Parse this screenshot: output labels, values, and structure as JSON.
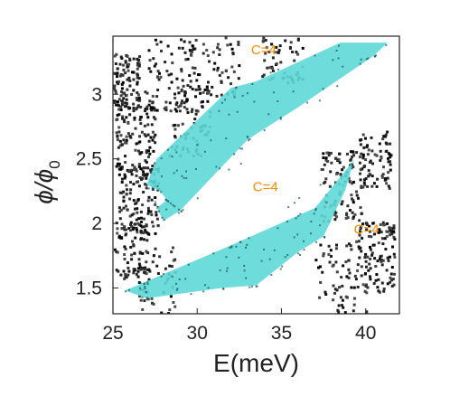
{
  "chart_data": {
    "type": "heatmap",
    "xlabel": "E(meV)",
    "ylabel": "ϕ/ϕ",
    "ylabel_subscript": "0",
    "xlim": [
      25,
      42
    ],
    "ylim": [
      1.3,
      3.45
    ],
    "xticks": [
      25,
      30,
      35,
      40
    ],
    "yticks": [
      1.5,
      2,
      2.5,
      3
    ],
    "xtick_labels": [
      "25",
      "30",
      "35",
      "40"
    ],
    "ytick_labels": [
      "1.5",
      "2",
      "2.5",
      "3"
    ],
    "colormap": "grayscale (white = gap, black = high density of states)",
    "highlight_color": "#5fd8d8",
    "annotation_color": "#f28c00",
    "regions": [
      {
        "label": "C=4",
        "label_at": [
          33.2,
          3.31
        ],
        "polygon": [
          [
            27.0,
            2.3
          ],
          [
            27.6,
            2.5
          ],
          [
            32.0,
            3.05
          ],
          [
            33.5,
            3.1
          ],
          [
            38.5,
            3.4
          ],
          [
            41.3,
            3.4
          ],
          [
            40.5,
            3.3
          ],
          [
            36.0,
            2.9
          ],
          [
            33.0,
            2.65
          ],
          [
            29.0,
            2.1
          ],
          [
            28.0,
            2.02
          ],
          [
            27.6,
            2.12
          ],
          [
            28.2,
            2.18
          ],
          [
            27.8,
            2.25
          ]
        ]
      },
      {
        "label": "C=4",
        "label_at": [
          33.3,
          2.25
        ],
        "polygon": []
      },
      {
        "label": "C=4",
        "label_at": [
          39.3,
          1.92
        ],
        "polygon": [
          [
            25.7,
            1.48
          ],
          [
            26.8,
            1.54
          ],
          [
            32.0,
            1.83
          ],
          [
            37.0,
            2.12
          ],
          [
            39.3,
            2.49
          ],
          [
            38.8,
            2.26
          ],
          [
            37.5,
            1.9
          ],
          [
            36.0,
            1.78
          ],
          [
            33.5,
            1.52
          ],
          [
            31.5,
            1.5
          ],
          [
            27.0,
            1.42
          ]
        ]
      }
    ]
  }
}
